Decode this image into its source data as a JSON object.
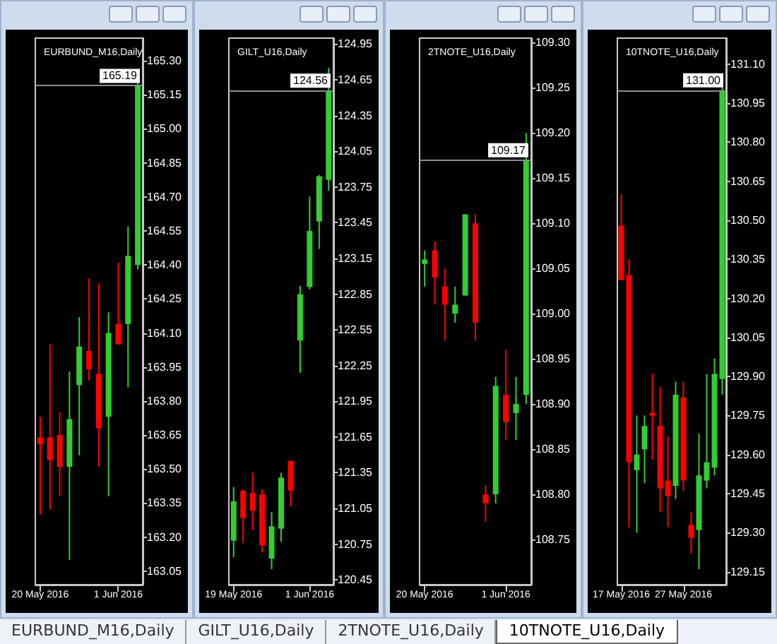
{
  "chart_data": [
    {
      "type": "candlestick",
      "title": "EURBUND_M16,Daily",
      "categories": [
        "20 May 2016",
        null,
        null,
        null,
        null,
        null,
        null,
        null,
        "1 Jun 2016",
        null,
        null
      ],
      "ohlc": [
        [
          163.64,
          163.73,
          163.3,
          163.61
        ],
        [
          163.64,
          164.05,
          163.32,
          163.54
        ],
        [
          163.65,
          163.75,
          163.38,
          163.51
        ],
        [
          163.51,
          163.93,
          163.1,
          163.72
        ],
        [
          163.87,
          164.17,
          163.56,
          164.04
        ],
        [
          164.02,
          164.34,
          163.89,
          163.94
        ],
        [
          163.92,
          164.32,
          163.51,
          163.68
        ],
        [
          163.73,
          164.19,
          163.38,
          164.1
        ],
        [
          164.14,
          164.41,
          164.05,
          164.05
        ],
        [
          164.14,
          164.57,
          163.86,
          164.44
        ],
        [
          164.4,
          165.21,
          164.38,
          165.19
        ]
      ],
      "ylim": [
        162.99,
        165.4
      ],
      "yticks": [
        163.05,
        {
          "value": 163.2,
          "label": "163.20"
        },
        163.35,
        {
          "value": 163.5,
          "label": "163.50"
        },
        163.65,
        {
          "value": 163.8,
          "label": "163.80"
        },
        163.95,
        {
          "value": 164.1,
          "label": "164.10"
        },
        164.25,
        {
          "value": 164.4,
          "label": "164.40"
        },
        164.55,
        {
          "value": 164.7,
          "label": "164.70"
        },
        164.85,
        {
          "value": 165,
          "label": "165.00"
        },
        165.15,
        {
          "value": 165.3,
          "label": "165.30"
        }
      ],
      "ref_lines": [
        {
          "axis": "y",
          "value": 165.19,
          "label": "165.19"
        }
      ],
      "grid": false
    },
    {
      "type": "candlestick",
      "title": "GILT_U16,Daily",
      "categories": [
        "19 May 2016",
        null,
        null,
        null,
        null,
        null,
        null,
        null,
        "1 Jun 2016",
        null,
        null
      ],
      "ohlc": [
        [
          120.78,
          121.23,
          120.64,
          121.11
        ],
        [
          121.2,
          121.21,
          120.76,
          120.97
        ],
        [
          121.18,
          121.35,
          120.87,
          121.03
        ],
        [
          121.17,
          121.21,
          120.68,
          120.74
        ],
        [
          120.63,
          121.02,
          120.54,
          120.9
        ],
        [
          120.88,
          121.35,
          120.77,
          121.31
        ],
        [
          121.45,
          121.45,
          121.07,
          121.2
        ],
        [
          122.46,
          122.92,
          122.19,
          122.85
        ],
        [
          122.91,
          123.67,
          122.89,
          123.38
        ],
        [
          123.46,
          123.85,
          123.23,
          123.84
        ],
        [
          123.81,
          124.75,
          123.72,
          124.56
        ]
      ],
      "ylim": [
        120.41,
        125
      ],
      "yticks": [
        120.45,
        120.75,
        121.05,
        121.35,
        121.65,
        121.95,
        122.25,
        122.55,
        122.85,
        123.15,
        123.45,
        123.75,
        124.05,
        124.35,
        124.65,
        124.95
      ],
      "ref_lines": [
        {
          "axis": "y",
          "value": 124.56,
          "label": "124.56"
        }
      ],
      "grid": false
    },
    {
      "type": "candlestick",
      "title": "2TNOTE_U16,Daily",
      "categories": [
        "20 May 2016",
        null,
        null,
        null,
        null,
        null,
        null,
        null,
        "1 Jun 2016",
        null,
        null
      ],
      "ohlc": [
        [
          109.055,
          109.07,
          109.03,
          109.06
        ],
        [
          109.07,
          109.08,
          109.01,
          109.04
        ],
        [
          109.03,
          109.05,
          108.97,
          109.01
        ],
        [
          109,
          109.03,
          108.99,
          109.01
        ],
        [
          109.02,
          109.11,
          109.02,
          109.11
        ],
        [
          109.1,
          109.11,
          108.97,
          108.99
        ],
        [
          108.8,
          108.81,
          108.77,
          108.79
        ],
        [
          108.8,
          108.93,
          108.79,
          108.92
        ],
        [
          108.91,
          108.96,
          108.86,
          108.88
        ],
        [
          108.89,
          108.93,
          108.86,
          108.9
        ],
        [
          108.91,
          109.2,
          108.9,
          109.17
        ]
      ],
      "ylim": [
        108.7,
        109.305
      ],
      "yticks": [
        108.75,
        {
          "value": 108.8,
          "label": "108.80"
        },
        108.85,
        {
          "value": 108.9,
          "label": "108.90"
        },
        108.95,
        {
          "value": 109,
          "label": "109.00"
        },
        109.05,
        {
          "value": 109.1,
          "label": "109.10"
        },
        109.15,
        {
          "value": 109.2,
          "label": "109.20"
        },
        109.25,
        {
          "value": 109.3,
          "label": "109.30"
        }
      ],
      "ref_lines": [
        {
          "axis": "y",
          "value": 109.17,
          "label": "109.17"
        }
      ],
      "grid": false
    },
    {
      "type": "candlestick",
      "title": "10TNOTE_U16,Daily",
      "categories": [
        "17 May 2016",
        null,
        null,
        null,
        null,
        null,
        null,
        null,
        "27 May 2016",
        null,
        null,
        null,
        null,
        null
      ],
      "ohlc": [
        [
          130.48,
          130.6,
          130.27,
          130.27
        ],
        [
          130.29,
          130.35,
          129.32,
          129.57
        ],
        [
          129.54,
          129.75,
          129.3,
          129.6
        ],
        [
          129.62,
          129.75,
          129.49,
          129.71
        ],
        [
          129.76,
          129.91,
          129.58,
          129.75
        ],
        [
          129.71,
          129.86,
          129.38,
          129.47
        ],
        [
          129.5,
          129.67,
          129.32,
          129.44
        ],
        [
          129.48,
          129.88,
          129.43,
          129.83
        ],
        [
          129.82,
          129.88,
          129.46,
          129.5
        ],
        [
          129.33,
          129.38,
          129.22,
          129.28
        ],
        [
          129.31,
          129.68,
          129.16,
          129.52
        ],
        [
          129.5,
          129.91,
          129.47,
          129.57
        ],
        [
          129.55,
          129.97,
          129.52,
          129.91
        ],
        [
          129.89,
          131.02,
          129.83,
          131
        ]
      ],
      "ylim": [
        129.1,
        131.2
      ],
      "yticks": [
        129.15,
        {
          "value": 129.3,
          "label": "129.30"
        },
        129.45,
        {
          "value": 129.6,
          "label": "129.60"
        },
        129.75,
        {
          "value": 129.9,
          "label": "129.90"
        },
        130.05,
        {
          "value": 130.2,
          "label": "130.20"
        },
        130.35,
        {
          "value": 130.5,
          "label": "130.50"
        },
        130.65,
        {
          "value": 130.8,
          "label": "130.80"
        },
        130.95,
        {
          "value": 131.1,
          "label": "131.10"
        }
      ],
      "ref_lines": [
        {
          "axis": "y",
          "value": 131,
          "label": "131.00"
        }
      ],
      "grid": false
    }
  ]
}
